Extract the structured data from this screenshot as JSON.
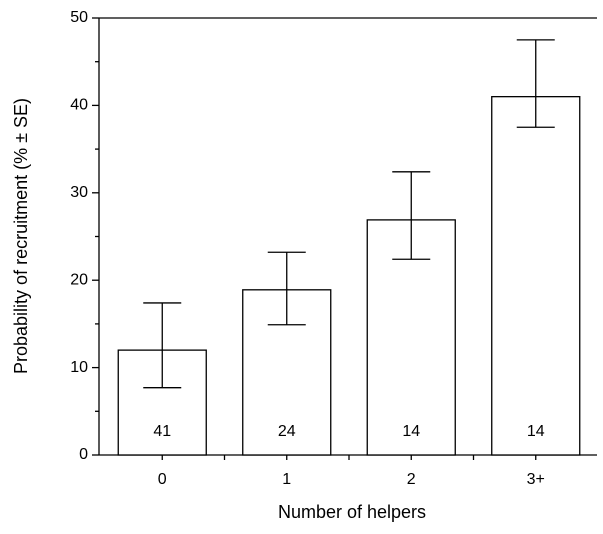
{
  "chart_data": {
    "type": "bar",
    "xlabel": "Number of helpers",
    "ylabel": "Probability of recruitment (% ± SE)",
    "categories": [
      "0",
      "1",
      "2",
      "3+"
    ],
    "values": [
      12.0,
      18.9,
      26.9,
      41.0
    ],
    "err_low": [
      7.7,
      14.9,
      22.4,
      37.5
    ],
    "err_high": [
      17.4,
      23.2,
      32.4,
      47.5
    ],
    "n_labels": [
      41,
      24,
      14,
      14
    ],
    "color": "#ffffff",
    "ylim": [
      0,
      50
    ],
    "yticks": [
      0,
      10,
      20,
      30,
      40,
      50
    ],
    "yminorticks": [
      5,
      15,
      25,
      35,
      45
    ]
  }
}
